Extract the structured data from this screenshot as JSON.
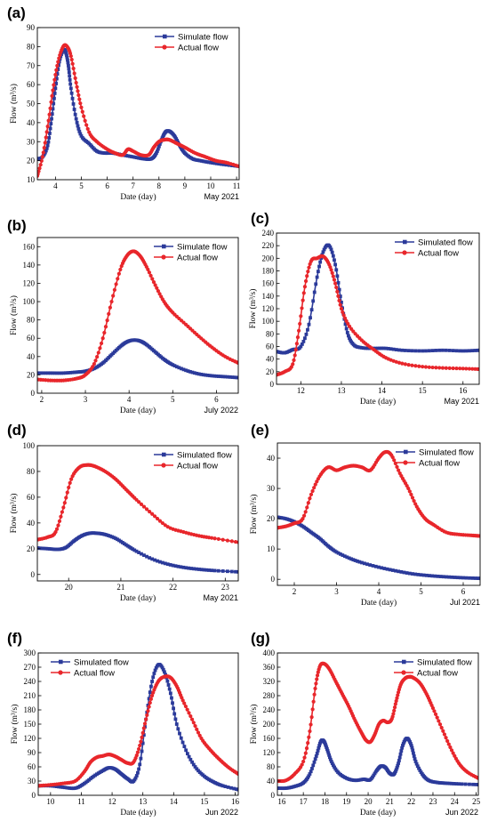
{
  "colors": {
    "simulated": "#2b3a9a",
    "actual": "#e8262b",
    "axis": "#000000"
  },
  "chart_data": [
    {
      "panel": "(a)",
      "type": "line",
      "xlabel": "Date (day)",
      "ylabel": "Flow (m³/s)",
      "corner": "May 2021",
      "xlim": [
        3.3,
        11.1
      ],
      "ylim": [
        10,
        90
      ],
      "xticks": [
        4,
        5,
        6,
        7,
        8,
        9,
        10,
        11
      ],
      "yticks": [
        10,
        20,
        30,
        40,
        50,
        60,
        70,
        80,
        90
      ],
      "legend": "top-right",
      "series": [
        {
          "name": "Simulate flow",
          "color": "#2b3a9a",
          "marker": "square",
          "x": [
            3.3,
            3.5,
            3.7,
            3.85,
            4.0,
            4.15,
            4.3,
            4.4,
            4.5,
            4.6,
            4.8,
            5.0,
            5.3,
            5.6,
            5.9,
            6.2,
            6.6,
            7.0,
            7.4,
            7.7,
            7.9,
            8.1,
            8.25,
            8.4,
            8.6,
            8.8,
            9.0,
            9.3,
            9.6,
            10.0,
            10.5,
            11.1
          ],
          "y": [
            21,
            22,
            28,
            42,
            58,
            72,
            78,
            77,
            70,
            58,
            42,
            33,
            29,
            25,
            24,
            24,
            23,
            22,
            21,
            21,
            24,
            31,
            35,
            35.5,
            33,
            28,
            24,
            21,
            20,
            19,
            18,
            17
          ]
        },
        {
          "name": "Actual flow",
          "color": "#e8262b",
          "marker": "circle",
          "x": [
            3.3,
            3.5,
            3.7,
            3.9,
            4.1,
            4.3,
            4.45,
            4.6,
            4.8,
            5.0,
            5.3,
            5.6,
            6.0,
            6.3,
            6.6,
            6.8,
            7.0,
            7.3,
            7.6,
            7.8,
            8.0,
            8.2,
            8.4,
            8.7,
            9.0,
            9.4,
            9.8,
            10.2,
            10.6,
            11.1
          ],
          "y": [
            12,
            22,
            38,
            57,
            72,
            80,
            80,
            75,
            61,
            48,
            35,
            30,
            26,
            24,
            23,
            26,
            25,
            23,
            23,
            27,
            30,
            31,
            31,
            29,
            27,
            24,
            22,
            20,
            19,
            17
          ]
        }
      ]
    },
    {
      "panel": "(b)",
      "type": "line",
      "xlabel": "Date (day)",
      "ylabel": "Flow (m³/s)",
      "corner": "July 2022",
      "xlim": [
        1.9,
        6.5
      ],
      "ylim": [
        0,
        170
      ],
      "xticks": [
        2,
        3,
        4,
        5,
        6
      ],
      "yticks": [
        0,
        20,
        40,
        60,
        80,
        100,
        120,
        140,
        160
      ],
      "legend": "top-right",
      "series": [
        {
          "name": "Simulate flow",
          "color": "#2b3a9a",
          "marker": "square",
          "x": [
            1.9,
            2.2,
            2.5,
            2.8,
            3.0,
            3.2,
            3.4,
            3.6,
            3.8,
            3.95,
            4.1,
            4.25,
            4.4,
            4.6,
            4.8,
            5.0,
            5.3,
            5.6,
            5.9,
            6.2,
            6.5
          ],
          "y": [
            22,
            22,
            22,
            23,
            24,
            27,
            33,
            42,
            51,
            56,
            58,
            57,
            53,
            45,
            37,
            31,
            25,
            21,
            19,
            18,
            17
          ]
        },
        {
          "name": "Actual flow",
          "color": "#e8262b",
          "marker": "circle",
          "x": [
            1.9,
            2.2,
            2.5,
            2.8,
            3.0,
            3.2,
            3.4,
            3.6,
            3.8,
            3.95,
            4.1,
            4.25,
            4.4,
            4.6,
            4.8,
            5.0,
            5.3,
            5.6,
            5.9,
            6.2,
            6.5
          ],
          "y": [
            15,
            14,
            14,
            16,
            20,
            32,
            60,
            100,
            135,
            150,
            155,
            150,
            138,
            118,
            100,
            88,
            75,
            62,
            50,
            40,
            33
          ]
        }
      ]
    },
    {
      "panel": "(c)",
      "type": "line",
      "xlabel": "Date (day)",
      "ylabel": "Flow (m³/s)",
      "corner": "May 2021",
      "xlim": [
        11.4,
        16.4
      ],
      "ylim": [
        0,
        240
      ],
      "xticks": [
        12,
        13,
        14,
        15,
        16
      ],
      "yticks": [
        0,
        20,
        40,
        60,
        80,
        100,
        120,
        140,
        160,
        180,
        200,
        220,
        240
      ],
      "legend": "top-right",
      "series": [
        {
          "name": "Simulated flow",
          "color": "#2b3a9a",
          "marker": "square",
          "x": [
            11.4,
            11.6,
            11.8,
            12.0,
            12.2,
            12.4,
            12.55,
            12.7,
            12.85,
            13.0,
            13.15,
            13.3,
            13.5,
            13.8,
            14.1,
            14.5,
            15.0,
            15.5,
            16.0,
            16.4
          ],
          "y": [
            52,
            50,
            55,
            60,
            95,
            170,
            210,
            220,
            190,
            130,
            82,
            63,
            58,
            57,
            57,
            54,
            53,
            54,
            53,
            54
          ]
        },
        {
          "name": "Actual flow",
          "color": "#e8262b",
          "marker": "circle",
          "x": [
            11.4,
            11.6,
            11.8,
            11.95,
            12.1,
            12.25,
            12.4,
            12.55,
            12.7,
            12.85,
            13.0,
            13.2,
            13.5,
            13.8,
            14.1,
            14.5,
            15.0,
            15.5,
            16.0,
            16.4
          ],
          "y": [
            15,
            20,
            32,
            85,
            155,
            195,
            200,
            203,
            190,
            160,
            120,
            92,
            70,
            55,
            42,
            33,
            28,
            26,
            25,
            24
          ]
        }
      ]
    },
    {
      "panel": "(d)",
      "type": "line",
      "xlabel": "Date (day)",
      "ylabel": "Flow (m³/s)",
      "corner": "May 2021",
      "xlim": [
        19.4,
        23.25
      ],
      "ylim": [
        -5,
        100
      ],
      "xticks": [
        20,
        21,
        22,
        23
      ],
      "yticks": [
        0,
        20,
        40,
        60,
        80,
        100
      ],
      "legend": "top-right",
      "series": [
        {
          "name": "Simulated flow",
          "color": "#2b3a9a",
          "marker": "square",
          "x": [
            19.4,
            19.6,
            19.8,
            19.95,
            20.1,
            20.25,
            20.4,
            20.55,
            20.7,
            20.9,
            21.1,
            21.3,
            21.6,
            21.9,
            22.2,
            22.5,
            22.8,
            23.25
          ],
          "y": [
            20.5,
            20,
            19.5,
            21,
            26,
            30,
            32,
            32,
            31,
            28,
            23,
            18,
            12,
            8,
            5.5,
            4,
            3,
            2
          ]
        },
        {
          "name": "Actual flow",
          "color": "#e8262b",
          "marker": "circle",
          "x": [
            19.4,
            19.6,
            19.75,
            19.9,
            20.05,
            20.2,
            20.35,
            20.5,
            20.7,
            20.9,
            21.1,
            21.3,
            21.6,
            21.9,
            22.2,
            22.5,
            22.8,
            23.25
          ],
          "y": [
            27,
            29,
            33,
            52,
            74,
            83,
            85,
            84,
            80,
            74,
            66,
            58,
            47,
            37,
            33,
            30,
            28,
            25
          ]
        }
      ]
    },
    {
      "panel": "(e)",
      "type": "line",
      "xlabel": "Date (day)",
      "ylabel": "Flow (m³/s)",
      "corner": "Jul 2021",
      "xlim": [
        1.6,
        6.4
      ],
      "ylim": [
        -2,
        45
      ],
      "xticks": [
        2,
        3,
        4,
        5,
        6
      ],
      "yticks": [
        0,
        10,
        20,
        30,
        40
      ],
      "legend": "top-right",
      "series": [
        {
          "name": "Simulated flow",
          "color": "#2b3a9a",
          "marker": "square",
          "x": [
            1.6,
            1.8,
            2.0,
            2.2,
            2.4,
            2.6,
            2.8,
            3.0,
            3.3,
            3.6,
            4.0,
            4.4,
            4.8,
            5.2,
            5.6,
            6.0,
            6.4
          ],
          "y": [
            20.5,
            20,
            19,
            17.5,
            15.5,
            13.5,
            11,
            9,
            7,
            5.5,
            4,
            2.8,
            1.8,
            1.2,
            0.8,
            0.5,
            0.3
          ]
        },
        {
          "name": "Actual flow",
          "color": "#e8262b",
          "marker": "circle",
          "x": [
            1.6,
            1.8,
            2.0,
            2.2,
            2.4,
            2.6,
            2.8,
            3.0,
            3.2,
            3.4,
            3.6,
            3.8,
            4.0,
            4.15,
            4.3,
            4.5,
            4.7,
            4.9,
            5.1,
            5.3,
            5.6,
            5.9,
            6.2,
            6.4
          ],
          "y": [
            17,
            17.5,
            18.5,
            20,
            28,
            34,
            37,
            36,
            37,
            37.5,
            37,
            36,
            40,
            42,
            41,
            35,
            30,
            24,
            20,
            18,
            15.5,
            14.8,
            14.5,
            14.3
          ]
        }
      ]
    },
    {
      "panel": "(f)",
      "type": "line",
      "xlabel": "Date (day)",
      "ylabel": "Flow (m³/s)",
      "corner": "Jun 2022",
      "xlim": [
        9.6,
        16.1
      ],
      "ylim": [
        0,
        300
      ],
      "xticks": [
        10,
        11,
        12,
        13,
        14,
        15,
        16
      ],
      "yticks": [
        0,
        30,
        60,
        90,
        120,
        150,
        180,
        210,
        240,
        270,
        300
      ],
      "legend": "top-left",
      "series": [
        {
          "name": "Simulated flow",
          "color": "#2b3a9a",
          "marker": "square",
          "x": [
            9.6,
            10.0,
            10.4,
            10.8,
            11.1,
            11.4,
            11.7,
            11.9,
            12.1,
            12.3,
            12.5,
            12.7,
            12.9,
            13.1,
            13.3,
            13.5,
            13.7,
            13.9,
            14.1,
            14.4,
            14.7,
            15.0,
            15.3,
            15.6,
            16.1
          ],
          "y": [
            20,
            20,
            17,
            15,
            25,
            40,
            52,
            58,
            55,
            45,
            35,
            30,
            65,
            160,
            240,
            275,
            260,
            215,
            150,
            95,
            60,
            40,
            28,
            20,
            12
          ]
        },
        {
          "name": "Actual flow",
          "color": "#e8262b",
          "marker": "circle",
          "x": [
            9.6,
            10.0,
            10.4,
            10.8,
            11.1,
            11.3,
            11.5,
            11.7,
            11.9,
            12.1,
            12.3,
            12.5,
            12.7,
            12.9,
            13.1,
            13.3,
            13.5,
            13.7,
            13.9,
            14.1,
            14.3,
            14.6,
            14.9,
            15.2,
            15.5,
            15.8,
            16.1
          ],
          "y": [
            20,
            22,
            25,
            30,
            50,
            70,
            80,
            83,
            86,
            82,
            75,
            68,
            70,
            105,
            160,
            210,
            240,
            250,
            248,
            230,
            200,
            160,
            120,
            95,
            75,
            58,
            45
          ]
        }
      ]
    },
    {
      "panel": "(g)",
      "type": "line",
      "xlabel": "Date (day)",
      "ylabel": "Flow (m³/s)",
      "corner": "Jun 2022",
      "xlim": [
        15.8,
        25.1
      ],
      "ylim": [
        0,
        400
      ],
      "xticks": [
        16,
        17,
        18,
        19,
        20,
        21,
        22,
        23,
        24,
        25
      ],
      "yticks": [
        0,
        40,
        80,
        120,
        160,
        200,
        240,
        280,
        320,
        360,
        400
      ],
      "legend": "top-right",
      "series": [
        {
          "name": "Simulated flow",
          "color": "#2b3a9a",
          "marker": "square",
          "x": [
            15.8,
            16.2,
            16.6,
            17.0,
            17.3,
            17.6,
            17.8,
            17.95,
            18.1,
            18.3,
            18.6,
            19.0,
            19.4,
            19.8,
            20.1,
            20.4,
            20.6,
            20.8,
            21.0,
            21.2,
            21.4,
            21.6,
            21.8,
            22.0,
            22.2,
            22.5,
            22.8,
            23.2,
            23.6,
            24.2,
            25.1
          ],
          "y": [
            20,
            20,
            25,
            35,
            60,
            110,
            150,
            152,
            130,
            95,
            65,
            48,
            42,
            45,
            44,
            70,
            82,
            78,
            62,
            60,
            90,
            140,
            160,
            140,
            95,
            60,
            42,
            36,
            34,
            32,
            30
          ]
        },
        {
          "name": "Actual flow",
          "color": "#e8262b",
          "marker": "circle",
          "x": [
            15.8,
            16.2,
            16.6,
            17.0,
            17.3,
            17.55,
            17.75,
            17.95,
            18.2,
            18.5,
            18.8,
            19.1,
            19.4,
            19.7,
            19.9,
            20.1,
            20.3,
            20.5,
            20.7,
            20.9,
            21.1,
            21.3,
            21.5,
            21.7,
            21.9,
            22.1,
            22.4,
            22.7,
            23.0,
            23.4,
            23.8,
            24.2,
            24.6,
            25.1
          ],
          "y": [
            40,
            42,
            60,
            95,
            180,
            300,
            360,
            370,
            355,
            320,
            285,
            250,
            210,
            175,
            155,
            150,
            170,
            200,
            210,
            205,
            215,
            265,
            310,
            328,
            333,
            330,
            315,
            285,
            245,
            190,
            135,
            90,
            65,
            48
          ]
        }
      ]
    }
  ]
}
